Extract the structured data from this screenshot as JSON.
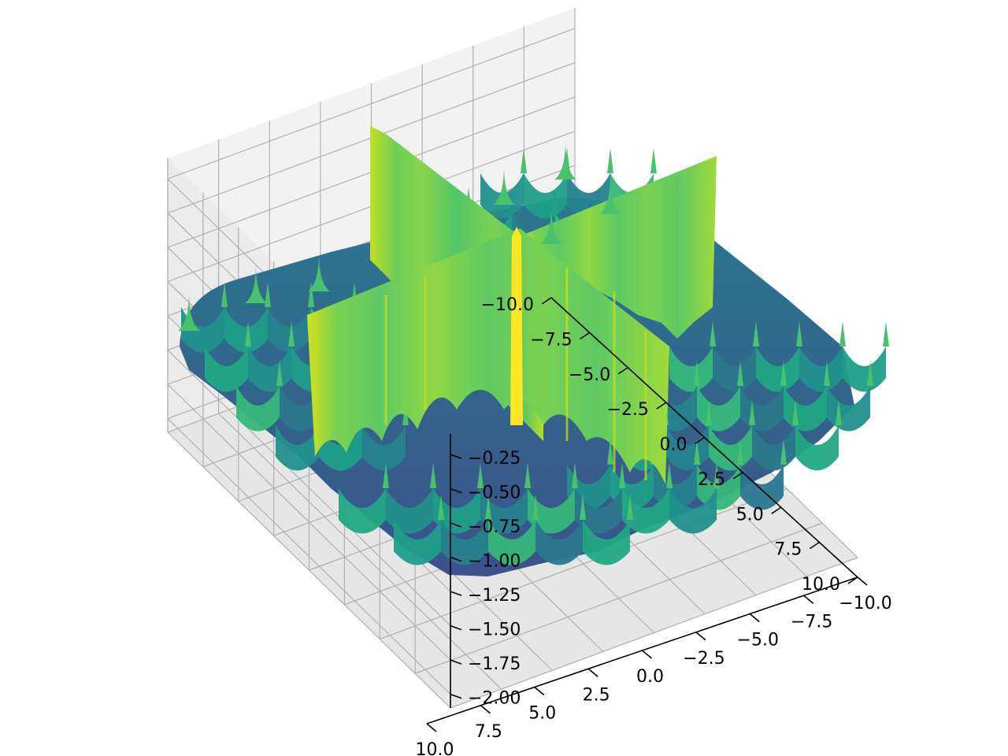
{
  "chart_data": {
    "type": "surface3d",
    "title": "",
    "xlabel": "",
    "ylabel": "",
    "zlabel": "",
    "colormap": "viridis",
    "x_range": [
      -10,
      10
    ],
    "y_range": [
      -10,
      10
    ],
    "z_range": [
      -2.1,
      -0.1
    ],
    "x_ticks": [
      "−10.0",
      "−7.5",
      "−5.0",
      "−2.5",
      "0.0",
      "2.5",
      "5.0",
      "7.5",
      "10.0"
    ],
    "y_ticks": [
      "−10.0",
      "−7.5",
      "−5.0",
      "−2.5",
      "0.0",
      "2.5",
      "5.0",
      "7.5",
      "10.0"
    ],
    "z_ticks": [
      "−2.00",
      "−1.75",
      "−1.50",
      "−1.25",
      "−1.00",
      "−0.75",
      "−0.50",
      "−0.25"
    ],
    "grid": true,
    "pane_color": "#f2f2f2"
  }
}
